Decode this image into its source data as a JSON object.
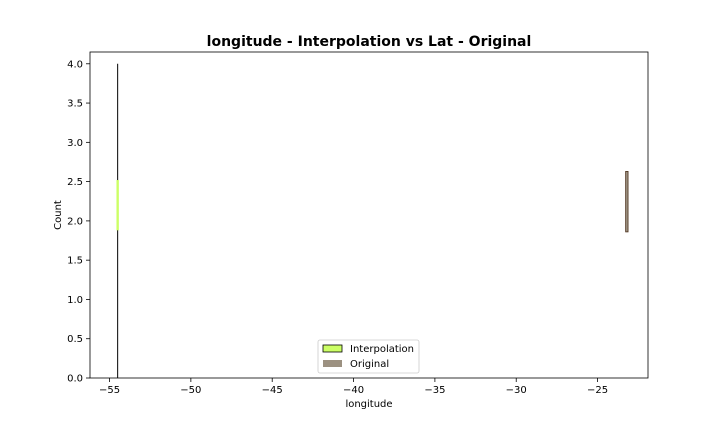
{
  "chart_data": {
    "type": "bar",
    "title": "longitude - Interpolation vs Lat - Original",
    "xlabel": "longitude",
    "ylabel": "Count",
    "xlim": [
      -56.2,
      -21.9
    ],
    "ylim": [
      0,
      4.15
    ],
    "x_ticks": [
      "−55",
      "−50",
      "−45",
      "−40",
      "−35",
      "−30",
      "−25"
    ],
    "x_tick_values": [
      -55,
      -50,
      -45,
      -40,
      -35,
      -30,
      -25
    ],
    "y_ticks": [
      "0.0",
      "0.5",
      "1.0",
      "1.5",
      "2.0",
      "2.5",
      "3.0",
      "3.5",
      "4.0"
    ],
    "y_tick_values": [
      0,
      0.5,
      1.0,
      1.5,
      2.0,
      2.5,
      3.0,
      3.5,
      4.0
    ],
    "grid": false,
    "legend_position": "lower center",
    "series": [
      {
        "name": "Interpolation",
        "color": "#ccff66",
        "edge_color": "#000000",
        "bars": [
          {
            "x": -54.5,
            "top": 4.0,
            "bottom": 0.0
          },
          {
            "x": -54.5,
            "top": 2.52,
            "bottom": 1.88
          }
        ]
      },
      {
        "name": "Original",
        "color": "#9c9181",
        "edge_color": "#4a2f1a",
        "bars": [
          {
            "x": -23.2,
            "top": 2.63,
            "bottom": 1.86
          }
        ]
      }
    ]
  }
}
